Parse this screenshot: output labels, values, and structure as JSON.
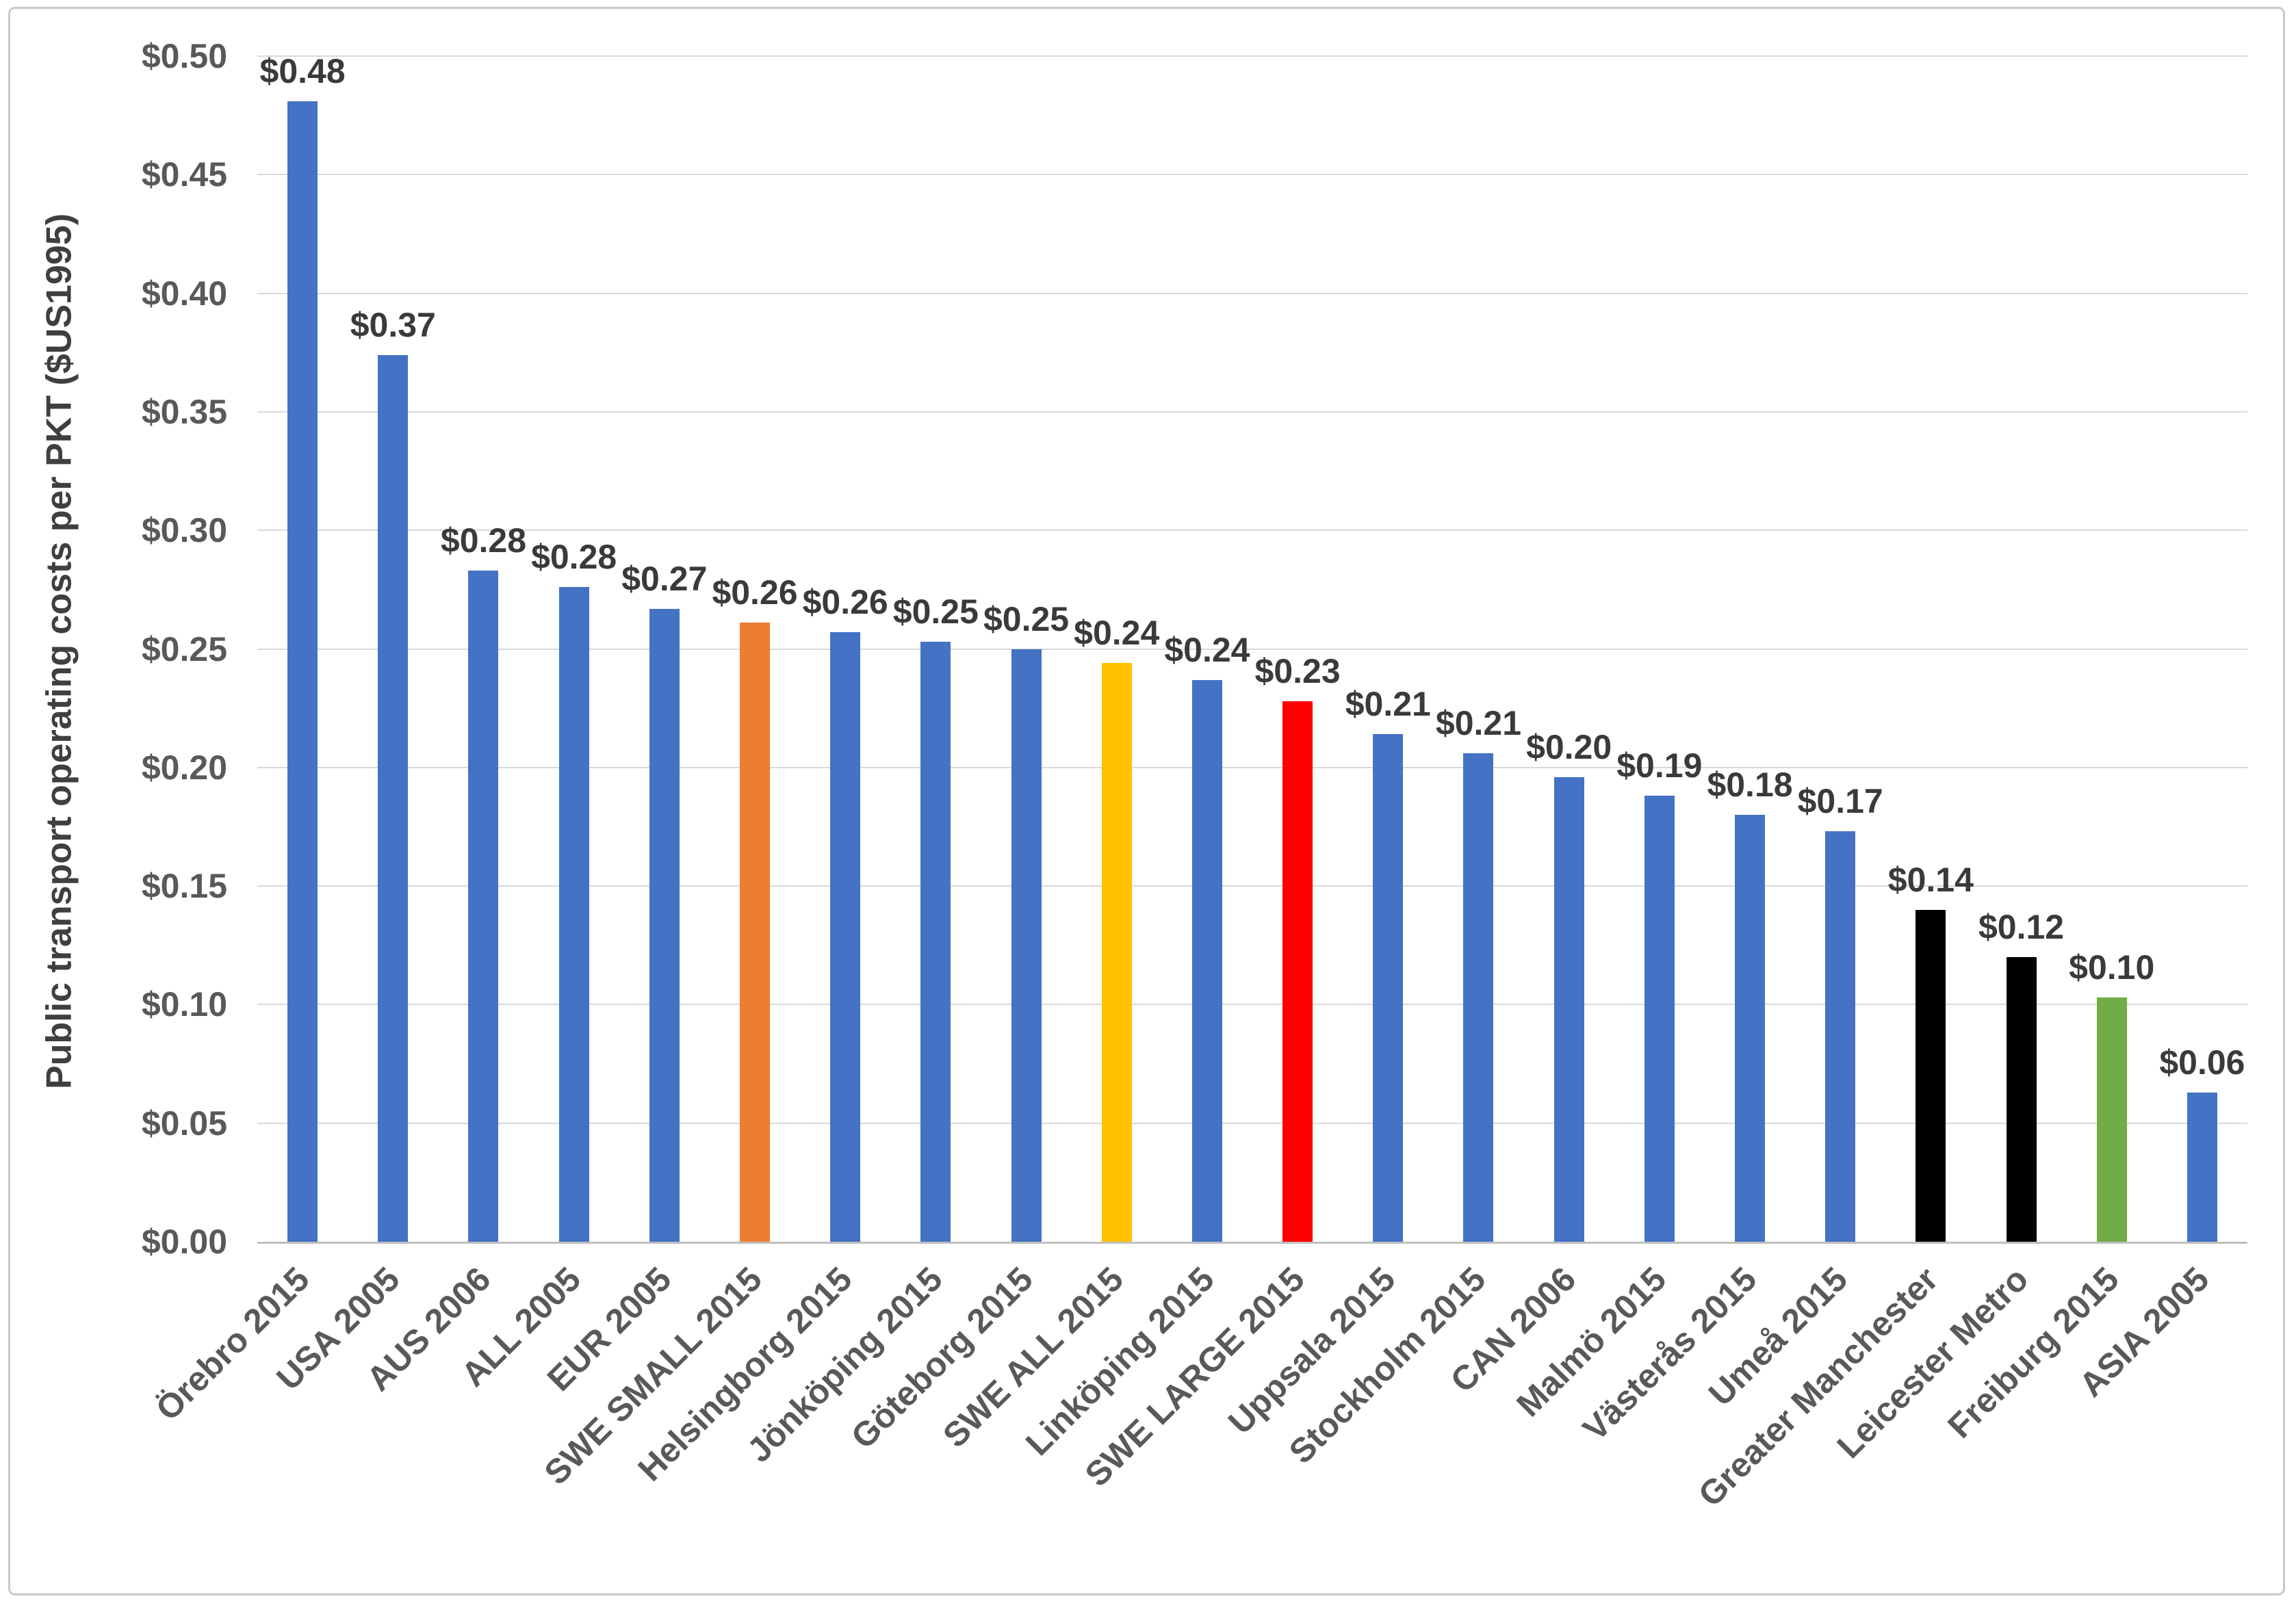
{
  "chart_data": {
    "type": "bar",
    "title": "",
    "xlabel": "",
    "ylabel": "Public transport  operating costs per PKT ($US1995)",
    "ylim": [
      0,
      0.5
    ],
    "ytick_step": 0.05,
    "ytick_labels": [
      "$0.00",
      "$0.05",
      "$0.10",
      "$0.15",
      "$0.20",
      "$0.25",
      "$0.30",
      "$0.35",
      "$0.40",
      "$0.45",
      "$0.50"
    ],
    "grid": "horizontal",
    "legend_position": "none",
    "categories": [
      "Örebro 2015",
      "USA 2005",
      "AUS 2006",
      "ALL 2005",
      "EUR 2005",
      "SWE SMALL 2015",
      "Helsingborg 2015",
      "Jönköping 2015",
      "Göteborg 2015",
      "SWE ALL 2015",
      "Linköping 2015",
      "SWE LARGE 2015",
      "Uppsala 2015",
      "Stockholm 2015",
      "CAN 2006",
      "Malmö 2015",
      "Västerås 2015",
      "Umeå 2015",
      "Greater Manchester",
      "Leicester Metro",
      "Freiburg 2015",
      "ASIA 2005"
    ],
    "values": [
      0.481,
      0.374,
      0.283,
      0.276,
      0.267,
      0.261,
      0.257,
      0.253,
      0.25,
      0.244,
      0.237,
      0.228,
      0.214,
      0.206,
      0.196,
      0.188,
      0.18,
      0.173,
      0.14,
      0.12,
      0.103,
      0.063
    ],
    "data_labels": [
      "$0.48",
      "$0.37",
      "$0.28",
      "$0.28",
      "$0.27",
      "$0.26",
      "$0.26",
      "$0.25",
      "$0.25",
      "$0.24",
      "$0.24",
      "$0.23",
      "$0.21",
      "$0.21",
      "$0.20",
      "$0.19",
      "$0.18",
      "$0.17",
      "$0.14",
      "$0.12",
      "$0.10",
      "$0.06"
    ],
    "bar_colors": [
      "#4472C4",
      "#4472C4",
      "#4472C4",
      "#4472C4",
      "#4472C4",
      "#ED7D31",
      "#4472C4",
      "#4472C4",
      "#4472C4",
      "#FFC000",
      "#4472C4",
      "#FF0000",
      "#4472C4",
      "#4472C4",
      "#4472C4",
      "#4472C4",
      "#4472C4",
      "#4472C4",
      "#000000",
      "#000000",
      "#70AD47",
      "#4472C4"
    ],
    "colors": {
      "default_bar": "#4472C4",
      "highlight_orange": "#ED7D31",
      "highlight_gold": "#FFC000",
      "highlight_red": "#FF0000",
      "highlight_black": "#000000",
      "highlight_green": "#70AD47",
      "gridline": "#D9D9D9",
      "axis_line": "#BFBFBF",
      "tick_label": "#595959",
      "data_label": "#3A3A3A",
      "axis_title": "#3F3F3F",
      "chart_border": "#C9C9C9",
      "background": "#FFFFFF"
    }
  }
}
